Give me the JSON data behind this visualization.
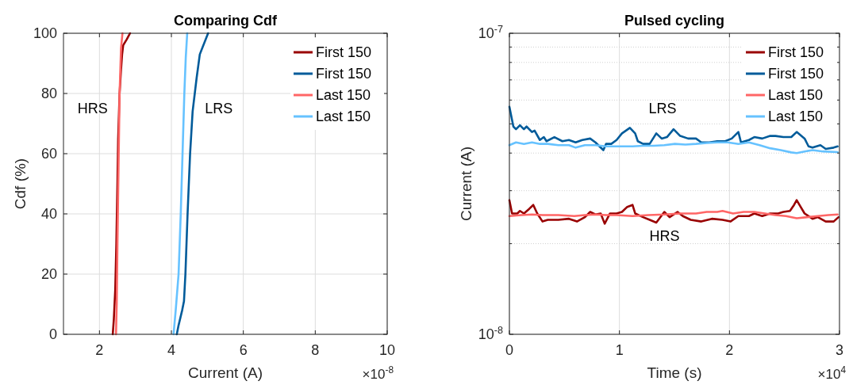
{
  "chart_data": [
    {
      "type": "line",
      "title": "Comparing Cdf",
      "xlabel": "Current (A)",
      "ylabel": "Cdf (%)",
      "xlim": [
        1,
        10
      ],
      "xticks": [
        2,
        4,
        6,
        8,
        10
      ],
      "ylim": [
        0,
        100
      ],
      "yticks": [
        0,
        20,
        40,
        60,
        80,
        100
      ],
      "grid": true,
      "legend": "top right",
      "annotations": [
        "×10$^{-8}$",
        "HRS",
        "LRS"
      ],
      "series": [
        {
          "name": "First 150",
          "color": "#990000",
          "x": [
            2.37,
            2.4,
            2.44,
            2.47,
            2.5,
            2.52,
            2.56,
            2.6,
            2.63,
            2.66,
            2.76,
            2.85
          ],
          "values": [
            0,
            5,
            15,
            30,
            50,
            65,
            80,
            88,
            93,
            96,
            98,
            100
          ]
        },
        {
          "name": "First 150",
          "color": "#005b9a",
          "x": [
            4.15,
            4.2,
            4.3,
            4.35,
            4.39,
            4.45,
            4.52,
            4.59,
            4.7,
            4.79,
            5.02
          ],
          "values": [
            0,
            3,
            8,
            11,
            20,
            40,
            60,
            74,
            85,
            93,
            100
          ]
        },
        {
          "name": "Last 150",
          "color": "#ff6666",
          "x": [
            2.46,
            2.48,
            2.5,
            2.53,
            2.56,
            2.6,
            2.64
          ],
          "values": [
            0,
            10,
            30,
            55,
            80,
            95,
            100
          ]
        },
        {
          "name": "Last 150",
          "color": "#66c2ff",
          "x": [
            4.06,
            4.12,
            4.2,
            4.26,
            4.31,
            4.36,
            4.4,
            4.44
          ],
          "values": [
            0,
            8,
            20,
            40,
            60,
            80,
            92,
            100
          ]
        }
      ]
    },
    {
      "type": "line",
      "title": "Pulsed cycling",
      "xlabel": "Time (s)",
      "ylabel": "Current (A)",
      "log": "y",
      "xlim": [
        0,
        3
      ],
      "xticks": [
        0,
        1,
        2,
        3
      ],
      "ylim": [
        1e-08,
        1e-07
      ],
      "yticks": [
        {
          "value": 1e-08,
          "label": "10$^{-8}$"
        },
        {
          "value": 2e-08,
          "label": null
        },
        {
          "value": 3e-08,
          "label": null
        },
        {
          "value": 4e-08,
          "label": null
        },
        {
          "value": 5e-08,
          "label": null
        },
        {
          "value": 6e-08,
          "label": null
        },
        {
          "value": 7e-08,
          "label": null
        },
        {
          "value": 8e-08,
          "label": null
        },
        {
          "value": 9e-08,
          "label": null
        },
        {
          "value": 1e-07,
          "label": "10$^{-7}$"
        }
      ],
      "grid": true,
      "legend": "top right",
      "annotations": [
        "×10$^{4}$",
        "LRS",
        "HRS"
      ],
      "series": [
        {
          "name": "First 150",
          "color": "#990000",
          "x": [
            0,
            0.024,
            0.072,
            0.096,
            0.132,
            0.18,
            0.217,
            0.253,
            0.301,
            0.349,
            0.445,
            0.541,
            0.614,
            0.686,
            0.734,
            0.782,
            0.83,
            0.866,
            0.914,
            0.974,
            1.023,
            1.071,
            1.119,
            1.143,
            1.215,
            1.275,
            1.335,
            1.408,
            1.456,
            1.528,
            1.576,
            1.648,
            1.744,
            1.841,
            1.937,
            2.009,
            2.081,
            2.177,
            2.226,
            2.298,
            2.37,
            2.442,
            2.49,
            2.55,
            2.587,
            2.611,
            2.647,
            2.683,
            2.755,
            2.803,
            2.875,
            2.947,
            2.991
          ],
          "values": [
            2.79e-08,
            2.52e-08,
            2.52e-08,
            2.57e-08,
            2.52e-08,
            2.61e-08,
            2.69e-08,
            2.52e-08,
            2.37e-08,
            2.4e-08,
            2.4e-08,
            2.42e-08,
            2.37e-08,
            2.45e-08,
            2.55e-08,
            2.5e-08,
            2.52e-08,
            2.33e-08,
            2.52e-08,
            2.52e-08,
            2.55e-08,
            2.65e-08,
            2.69e-08,
            2.52e-08,
            2.45e-08,
            2.4e-08,
            2.35e-08,
            2.55e-08,
            2.45e-08,
            2.55e-08,
            2.47e-08,
            2.4e-08,
            2.37e-08,
            2.42e-08,
            2.4e-08,
            2.37e-08,
            2.47e-08,
            2.47e-08,
            2.52e-08,
            2.47e-08,
            2.52e-08,
            2.52e-08,
            2.55e-08,
            2.57e-08,
            2.69e-08,
            2.79e-08,
            2.65e-08,
            2.52e-08,
            2.42e-08,
            2.45e-08,
            2.37e-08,
            2.37e-08,
            2.45e-08
          ]
        },
        {
          "name": "First 150",
          "color": "#005b9a",
          "x": [
            0,
            0.036,
            0.06,
            0.096,
            0.132,
            0.156,
            0.205,
            0.229,
            0.277,
            0.313,
            0.337,
            0.409,
            0.481,
            0.541,
            0.602,
            0.662,
            0.734,
            0.782,
            0.854,
            0.878,
            0.926,
            0.974,
            1.023,
            1.095,
            1.143,
            1.167,
            1.215,
            1.275,
            1.335,
            1.384,
            1.432,
            1.492,
            1.552,
            1.624,
            1.696,
            1.744,
            1.817,
            1.889,
            1.961,
            2.021,
            2.081,
            2.105,
            2.177,
            2.226,
            2.298,
            2.37,
            2.418,
            2.49,
            2.562,
            2.611,
            2.683,
            2.719,
            2.755,
            2.827,
            2.875,
            2.947,
            2.983
          ],
          "values": [
            5.7e-08,
            4.9e-08,
            4.8e-08,
            4.95e-08,
            4.8e-08,
            4.9e-08,
            4.7e-08,
            4.75e-08,
            4.42e-08,
            4.52e-08,
            4.38e-08,
            4.52e-08,
            4.38e-08,
            4.42e-08,
            4.34e-08,
            4.42e-08,
            4.47e-08,
            4.34e-08,
            4.09e-08,
            4.29e-08,
            4.29e-08,
            4.42e-08,
            4.65e-08,
            4.85e-08,
            4.65e-08,
            4.38e-08,
            4.29e-08,
            4.29e-08,
            4.65e-08,
            4.47e-08,
            4.52e-08,
            4.8e-08,
            4.56e-08,
            4.47e-08,
            4.47e-08,
            4.34e-08,
            4.34e-08,
            4.38e-08,
            4.38e-08,
            4.47e-08,
            4.7e-08,
            4.34e-08,
            4.42e-08,
            4.52e-08,
            4.47e-08,
            4.56e-08,
            4.56e-08,
            4.52e-08,
            4.52e-08,
            4.7e-08,
            4.47e-08,
            4.21e-08,
            4.17e-08,
            4.25e-08,
            4.13e-08,
            4.17e-08,
            4.21e-08
          ]
        },
        {
          "name": "Last 150",
          "color": "#ff6666",
          "x": [
            0,
            0.108,
            0.205,
            0.301,
            0.445,
            0.59,
            0.686,
            0.782,
            0.878,
            0.974,
            1.119,
            1.263,
            1.408,
            1.552,
            1.696,
            1.793,
            1.889,
            1.937,
            2.033,
            2.129,
            2.226,
            2.322,
            2.418,
            2.514,
            2.611,
            2.707,
            2.803,
            2.899,
            2.983
          ],
          "values": [
            2.47e-08,
            2.49e-08,
            2.5e-08,
            2.49e-08,
            2.49e-08,
            2.47e-08,
            2.49e-08,
            2.5e-08,
            2.49e-08,
            2.49e-08,
            2.47e-08,
            2.49e-08,
            2.5e-08,
            2.52e-08,
            2.52e-08,
            2.55e-08,
            2.55e-08,
            2.57e-08,
            2.52e-08,
            2.55e-08,
            2.55e-08,
            2.52e-08,
            2.49e-08,
            2.47e-08,
            2.43e-08,
            2.45e-08,
            2.47e-08,
            2.49e-08,
            2.5e-08
          ]
        },
        {
          "name": "Last 150",
          "color": "#66c2ff",
          "x": [
            0,
            0.06,
            0.132,
            0.205,
            0.277,
            0.349,
            0.445,
            0.541,
            0.602,
            0.686,
            0.782,
            0.878,
            0.974,
            1.119,
            1.215,
            1.311,
            1.408,
            1.504,
            1.6,
            1.696,
            1.793,
            1.889,
            1.985,
            2.081,
            2.177,
            2.274,
            2.37,
            2.466,
            2.562,
            2.611,
            2.683,
            2.755,
            2.851,
            2.983
          ],
          "values": [
            4.25e-08,
            4.34e-08,
            4.29e-08,
            4.34e-08,
            4.29e-08,
            4.29e-08,
            4.25e-08,
            4.25e-08,
            4.17e-08,
            4.25e-08,
            4.25e-08,
            4.21e-08,
            4.21e-08,
            4.21e-08,
            4.23e-08,
            4.23e-08,
            4.25e-08,
            4.29e-08,
            4.27e-08,
            4.29e-08,
            4.32e-08,
            4.34e-08,
            4.34e-08,
            4.29e-08,
            4.34e-08,
            4.25e-08,
            4.15e-08,
            4.09e-08,
            4.02e-08,
            4e-08,
            4.05e-08,
            4.09e-08,
            4.05e-08,
            4.03e-08
          ]
        }
      ]
    }
  ]
}
